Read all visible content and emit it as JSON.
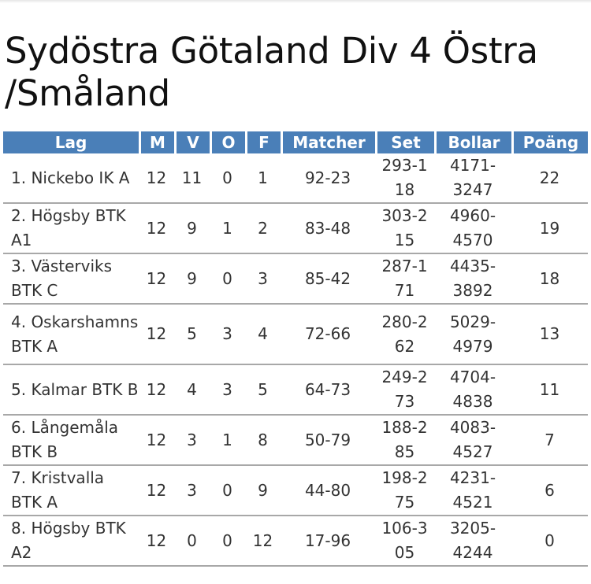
{
  "page": {
    "title": "Sydöstra Götaland Div 4 Östra /Småland"
  },
  "table": {
    "headers": [
      "Lag",
      "M",
      "V",
      "O",
      "F",
      "Matcher",
      "Set",
      "Bollar",
      "Poäng"
    ],
    "rows": [
      {
        "lag": "1. Nickebo IK A",
        "m": "12",
        "v": "11",
        "o": "0",
        "f": "1",
        "matcher": "92-23",
        "set": "293-118",
        "bollar": "4171-3247",
        "poang": "22"
      },
      {
        "lag": "2. Högsby BTK A1",
        "m": "12",
        "v": "9",
        "o": "1",
        "f": "2",
        "matcher": "83-48",
        "set": "303-215",
        "bollar": "4960-4570",
        "poang": "19"
      },
      {
        "lag": "3. Västerviks BTK C",
        "m": "12",
        "v": "9",
        "o": "0",
        "f": "3",
        "matcher": "85-42",
        "set": "287-171",
        "bollar": "4435-3892",
        "poang": "18"
      },
      {
        "lag": "4. Oskarshamns BTK A",
        "m": "12",
        "v": "5",
        "o": "3",
        "f": "4",
        "matcher": "72-66",
        "set": "280-262",
        "bollar": "5029-4979",
        "poang": "13"
      },
      {
        "lag": "5. Kalmar BTK B",
        "m": "12",
        "v": "4",
        "o": "3",
        "f": "5",
        "matcher": "64-73",
        "set": "249-273",
        "bollar": "4704-4838",
        "poang": "11"
      },
      {
        "lag": "6. Långemåla BTK B",
        "m": "12",
        "v": "3",
        "o": "1",
        "f": "8",
        "matcher": "50-79",
        "set": "188-285",
        "bollar": "4083-4527",
        "poang": "7"
      },
      {
        "lag": "7. Kristvalla BTK A",
        "m": "12",
        "v": "3",
        "o": "0",
        "f": "9",
        "matcher": "44-80",
        "set": "198-275",
        "bollar": "4231-4521",
        "poang": "6"
      },
      {
        "lag": "8. Högsby BTK A2",
        "m": "12",
        "v": "0",
        "o": "0",
        "f": "12",
        "matcher": "17-96",
        "set": "106-305",
        "bollar": "3205-4244",
        "poang": "0"
      }
    ]
  }
}
